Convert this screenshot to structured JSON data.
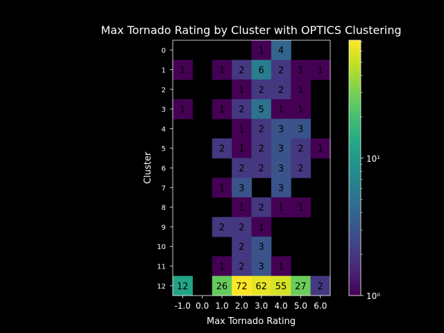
{
  "chart_data": {
    "type": "heatmap",
    "title": "Max Tornado Rating by Cluster with OPTICS Clustering",
    "xlabel": "Max Tornado Rating",
    "ylabel": "Cluster",
    "x_categories": [
      "-1.0",
      "0.0",
      "1.0",
      "2.0",
      "3.0",
      "4.0",
      "5.0",
      "6.0"
    ],
    "y_categories": [
      "0",
      "1",
      "2",
      "3",
      "4",
      "5",
      "6",
      "7",
      "8",
      "9",
      "10",
      "11",
      "12"
    ],
    "values": [
      [
        null,
        null,
        null,
        null,
        1,
        4,
        null,
        null
      ],
      [
        1,
        null,
        1,
        2,
        6,
        2,
        1,
        1
      ],
      [
        null,
        null,
        null,
        1,
        2,
        2,
        1,
        null
      ],
      [
        1,
        null,
        1,
        2,
        5,
        1,
        1,
        null
      ],
      [
        null,
        null,
        null,
        1,
        2,
        3,
        3,
        null
      ],
      [
        null,
        null,
        2,
        1,
        2,
        3,
        2,
        1
      ],
      [
        null,
        null,
        null,
        2,
        2,
        3,
        2,
        null
      ],
      [
        null,
        null,
        1,
        3,
        null,
        3,
        null,
        null
      ],
      [
        null,
        null,
        null,
        1,
        2,
        1,
        1,
        null
      ],
      [
        null,
        null,
        2,
        2,
        1,
        null,
        null,
        null
      ],
      [
        null,
        null,
        null,
        2,
        3,
        null,
        null,
        null
      ],
      [
        null,
        null,
        1,
        2,
        3,
        1,
        null,
        null
      ],
      [
        12,
        null,
        26,
        72,
        62,
        55,
        27,
        2
      ]
    ],
    "colorscale": "viridis",
    "color_scale_type": "log",
    "color_range": [
      1,
      72
    ],
    "colorbar_ticks": [
      {
        "value": 1,
        "label": "10⁰"
      },
      {
        "value": 10,
        "label": "10¹"
      }
    ],
    "background": "#000000",
    "text_color": "#ffffff",
    "cell_text_color": "#000000"
  }
}
